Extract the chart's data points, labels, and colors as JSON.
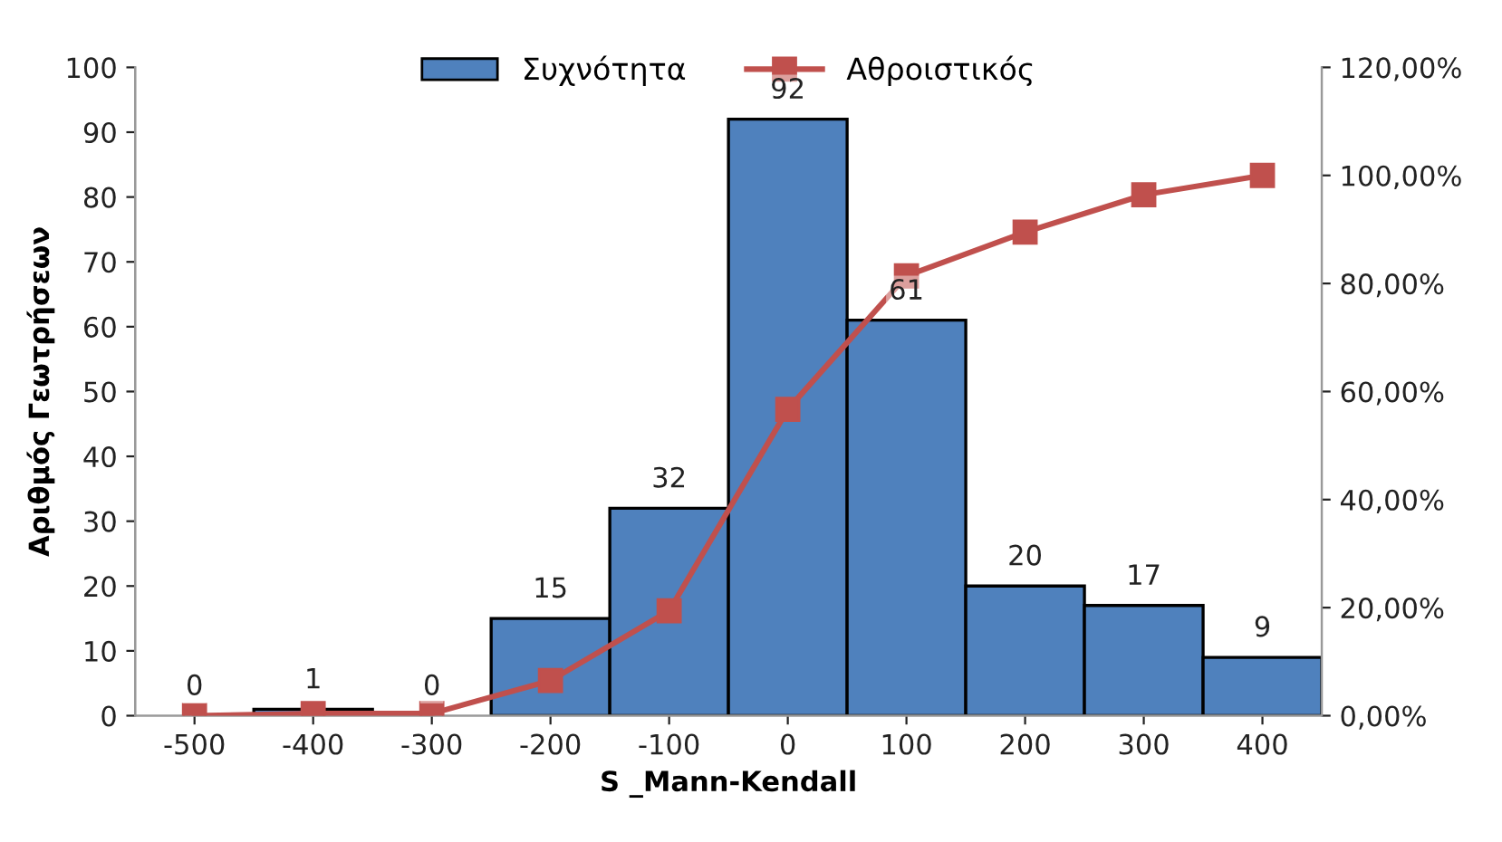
{
  "chart_data": {
    "type": "bar",
    "xlabel": "S _Mann-Kendall",
    "ylabel": "Αριθμός Γεωτρήσεων",
    "categories": [
      "-500",
      "-400",
      "-300",
      "-200",
      "-100",
      "0",
      "100",
      "200",
      "300",
      "400"
    ],
    "series": [
      {
        "name": "Συχνότητα",
        "color": "#4f81bd",
        "values": [
          0,
          1,
          0,
          15,
          32,
          92,
          61,
          20,
          17,
          9
        ],
        "value_labels": [
          "0",
          "1",
          "0",
          "15",
          "32",
          "92",
          "61",
          "20",
          "17",
          "9"
        ]
      },
      {
        "name": "Αθροιστικός",
        "type": "line",
        "axis": "y2",
        "color": "#c0504d",
        "values": [
          0,
          0.4,
          0.4,
          6.5,
          19.4,
          56.7,
          81.4,
          89.5,
          96.4,
          100
        ]
      }
    ],
    "ylim": [
      0,
      100
    ],
    "yticks": [
      0,
      10,
      20,
      30,
      40,
      50,
      60,
      70,
      80,
      90,
      100
    ],
    "y2lim": [
      0,
      120
    ],
    "y2ticks": [
      {
        "value": 0,
        "label": "0,00%"
      },
      {
        "value": 20,
        "label": "20,00%"
      },
      {
        "value": 40,
        "label": "40,00%"
      },
      {
        "value": 60,
        "label": "60,00%"
      },
      {
        "value": 80,
        "label": "80,00%"
      },
      {
        "value": 100,
        "label": "100,00%"
      },
      {
        "value": 120,
        "label": "120,00%"
      }
    ],
    "marker": "square",
    "line_style": "solid",
    "grid": false,
    "legend": "top"
  }
}
